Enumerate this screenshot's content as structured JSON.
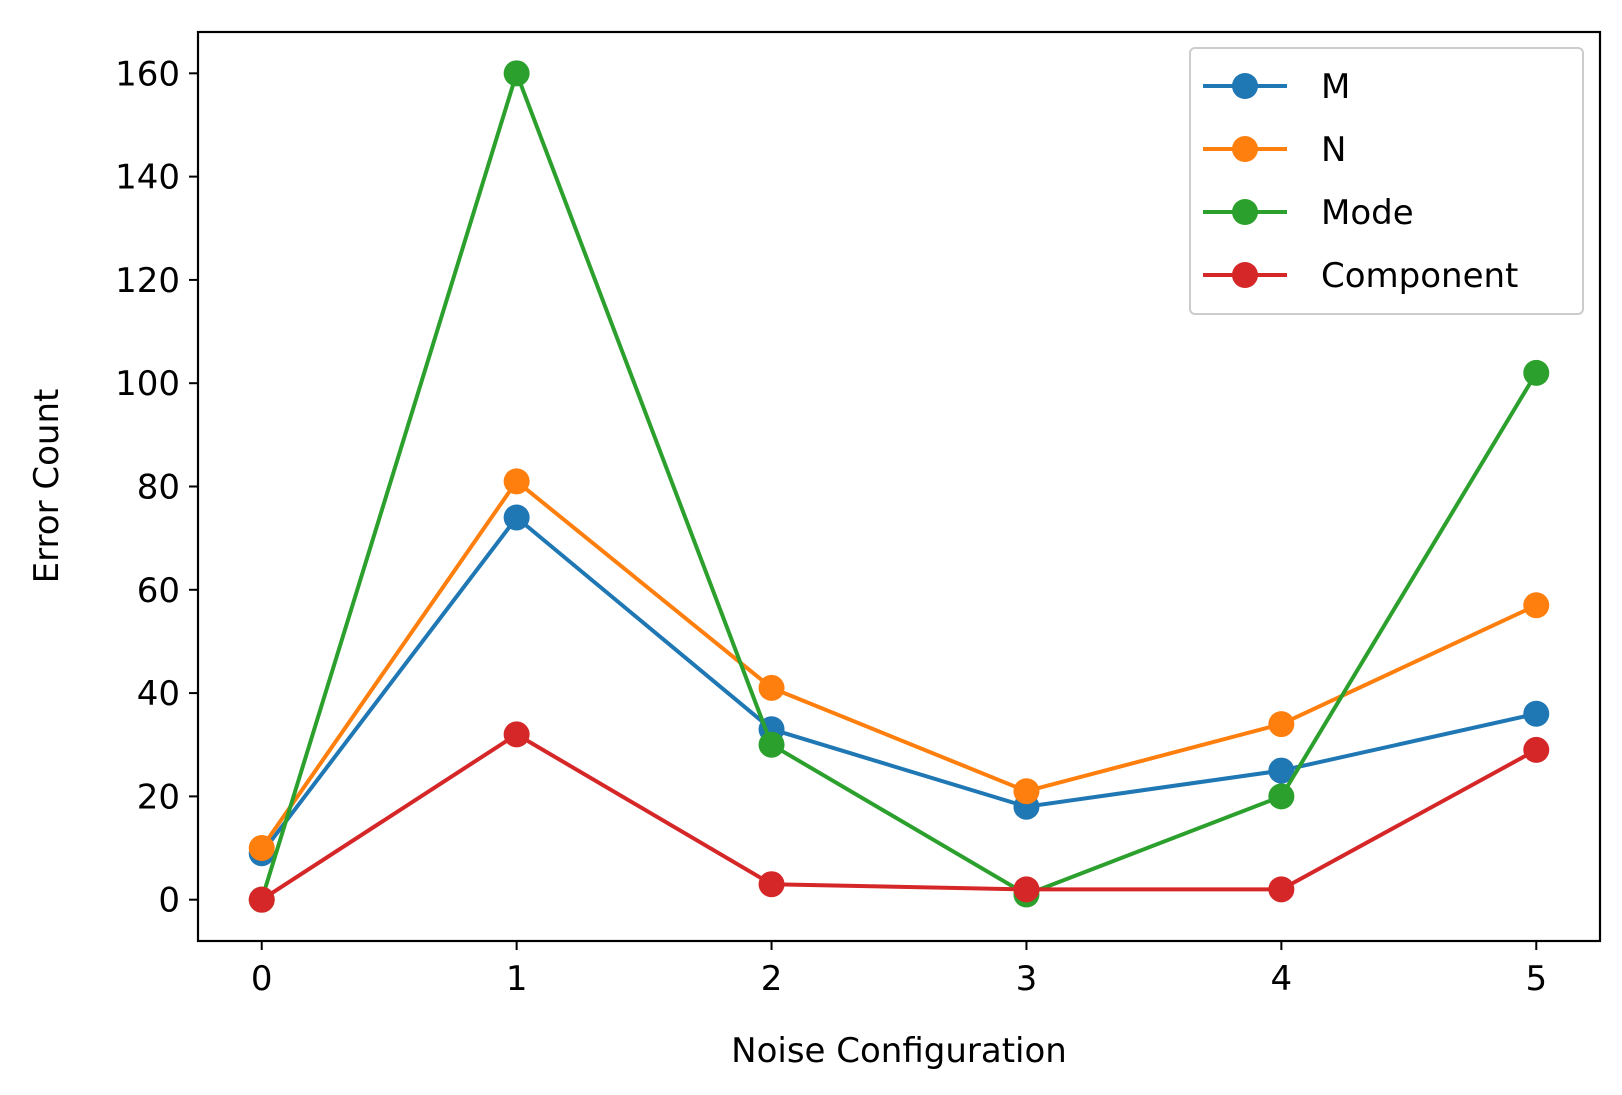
{
  "chart_data": {
    "type": "line",
    "title": "",
    "xlabel": "Noise Configuration",
    "ylabel": "Error Count",
    "x": [
      0,
      1,
      2,
      3,
      4,
      5
    ],
    "xticks": [
      "0",
      "1",
      "2",
      "3",
      "4",
      "5"
    ],
    "yticks": [
      "0",
      "20",
      "40",
      "60",
      "80",
      "100",
      "120",
      "140",
      "160"
    ],
    "xlim": [
      -0.25,
      5.25
    ],
    "ylim": [
      -8,
      168
    ],
    "grid": false,
    "legend_position": "upper right",
    "series": [
      {
        "name": "M",
        "color": "#1f77b4",
        "values": [
          9,
          74,
          33,
          18,
          25,
          36
        ]
      },
      {
        "name": "N",
        "color": "#ff7f0e",
        "values": [
          10,
          81,
          41,
          21,
          34,
          57
        ]
      },
      {
        "name": "Mode",
        "color": "#2ca02c",
        "values": [
          0,
          160,
          30,
          1,
          20,
          102
        ]
      },
      {
        "name": "Component",
        "color": "#d62728",
        "values": [
          0,
          32,
          3,
          2,
          2,
          29
        ]
      }
    ]
  }
}
